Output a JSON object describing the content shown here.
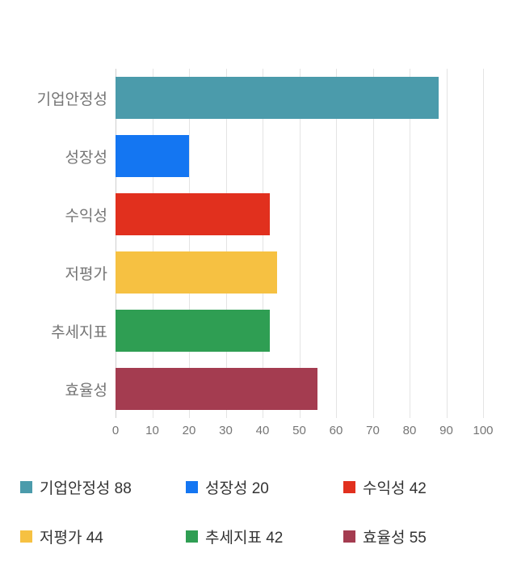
{
  "chart_data": {
    "type": "bar",
    "orientation": "horizontal",
    "title": "",
    "xlabel": "",
    "ylabel": "",
    "categories": [
      "기업안정성",
      "성장성",
      "수익성",
      "저평가",
      "추세지표",
      "효율성"
    ],
    "values": [
      88,
      20,
      42,
      44,
      42,
      55
    ],
    "colors": [
      "#4B9BAB",
      "#1476F2",
      "#E1301E",
      "#F6C142",
      "#2F9E53",
      "#A43C50"
    ],
    "xlim": [
      0,
      100
    ],
    "x_ticks": [
      0,
      10,
      20,
      30,
      40,
      50,
      60,
      70,
      80,
      90,
      100
    ],
    "grid": true,
    "grid_color": "#e4e4e4",
    "axis_label_color": "#757575",
    "legend_position": "bottom",
    "legend": [
      {
        "label": "기업안정성 88",
        "color": "#4B9BAB"
      },
      {
        "label": "성장성 20",
        "color": "#1476F2"
      },
      {
        "label": "수익성 42",
        "color": "#E1301E"
      },
      {
        "label": "저평가 44",
        "color": "#F6C142"
      },
      {
        "label": "추세지표 42",
        "color": "#2F9E53"
      },
      {
        "label": "효율성 55",
        "color": "#A43C50"
      }
    ]
  }
}
